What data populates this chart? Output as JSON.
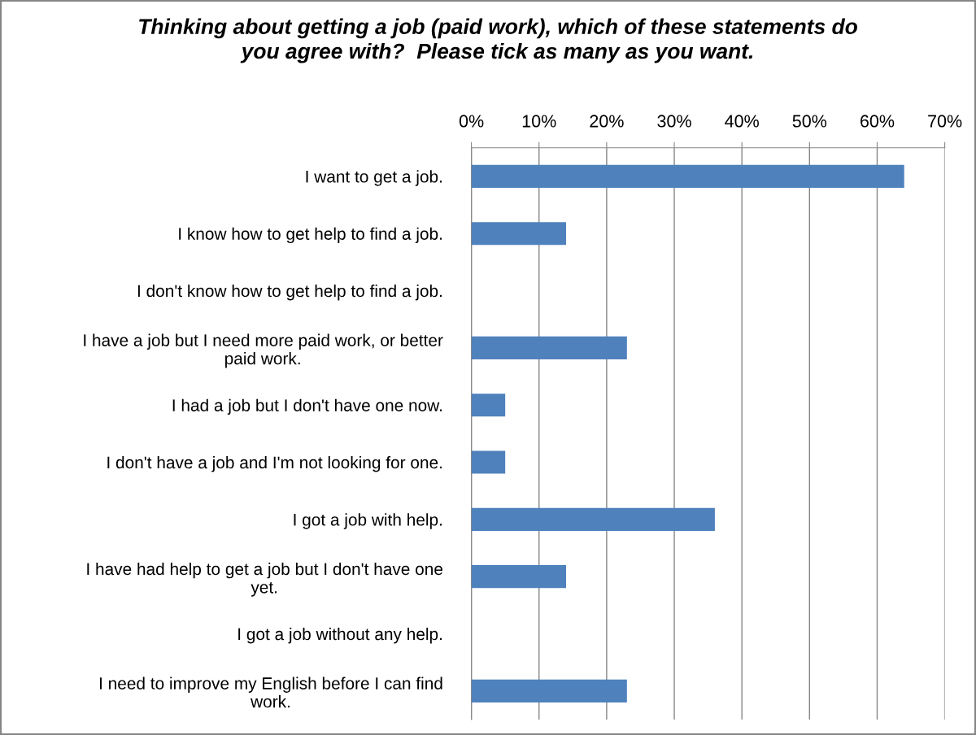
{
  "chart_data": {
    "type": "bar",
    "orientation": "horizontal",
    "title": "Thinking about getting a job (paid work), which of these statements do you agree with?  Please tick as many as you want.",
    "categories": [
      "I want to get a job.",
      "I know how to get help to find a job.",
      "I don't know how to get help to find a job.",
      "I have a job but I need more paid work, or better paid work.",
      "I had a job but I don't have one now.",
      "I don't have a job and I'm not looking for one.",
      "I got a job with help.",
      "I have had help to get a job but I don't have one yet.",
      "I got a job without any help.",
      "I need to improve my English before I can find work."
    ],
    "values": [
      64,
      14,
      0,
      23,
      5,
      5,
      36,
      14,
      0,
      23
    ],
    "color": "#4f81bd",
    "xlim": [
      0,
      70
    ],
    "xticks": [
      {
        "value": 0,
        "label": "0%"
      },
      {
        "value": 10,
        "label": "10%"
      },
      {
        "value": 20,
        "label": "20%"
      },
      {
        "value": 30,
        "label": "30%"
      },
      {
        "value": 40,
        "label": "40%"
      },
      {
        "value": 50,
        "label": "50%"
      },
      {
        "value": 60,
        "label": "60%"
      },
      {
        "value": 70,
        "label": "70%"
      }
    ],
    "grid": "x"
  }
}
